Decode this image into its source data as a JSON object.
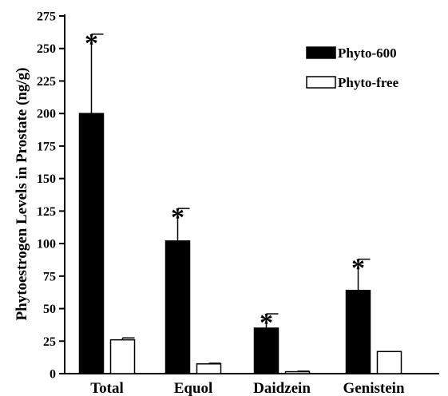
{
  "chart_data": {
    "type": "bar",
    "title": "",
    "ylabel": "Phytoestrogen Levels in Prostate (ng/g)",
    "xlabel": "",
    "ylim": [
      0,
      275
    ],
    "yticks": [
      0,
      25,
      50,
      75,
      100,
      125,
      150,
      175,
      200,
      225,
      250,
      275
    ],
    "categories": [
      "Total",
      "Equol",
      "Daidzein",
      "Genistein"
    ],
    "series": [
      {
        "name": "Phyto-600",
        "values": [
          200,
          102,
          35,
          64
        ],
        "errors": [
          61,
          25,
          11,
          24
        ],
        "fill": "#000000",
        "significant": [
          true,
          true,
          true,
          true
        ]
      },
      {
        "name": "Phyto-free",
        "values": [
          26,
          7.5,
          1.5,
          17
        ],
        "errors": [
          1.5,
          0.5,
          0.4,
          0
        ],
        "fill": "#ffffff",
        "significant": [
          false,
          false,
          false,
          false
        ]
      }
    ],
    "significance_marker": "*",
    "legend_position": "top-right",
    "grid": false
  }
}
